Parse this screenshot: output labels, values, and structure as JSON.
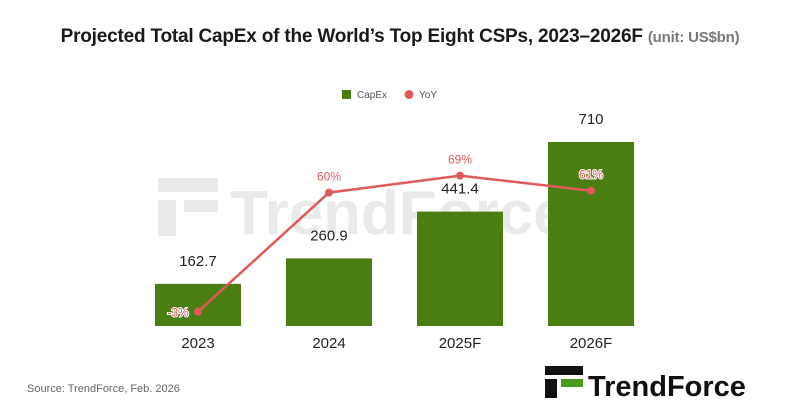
{
  "chart_data": {
    "type": "bar",
    "title": "Projected Total CapEx of the World’s Top Eight CSPs, 2023–2026F",
    "unit": "(unit: US$bn)",
    "categories": [
      "2023",
      "2024",
      "2025F",
      "2026F"
    ],
    "series": [
      {
        "name": "CapEx",
        "type": "bar",
        "values": [
          162.7,
          260.9,
          441.4,
          710
        ],
        "labels": [
          "162.7",
          "260.9",
          "441.4",
          "710"
        ],
        "color": "#4a7d12"
      },
      {
        "name": "YoY",
        "type": "line",
        "values": [
          -3,
          60,
          69,
          61
        ],
        "labels": [
          "-3%",
          "60%",
          "69%",
          "61%"
        ],
        "color": "#e05a5a"
      }
    ],
    "legend": "top-center",
    "grid": false
  },
  "footer": {
    "source": "Source: TrendForce, Feb. 2026",
    "logo_text": "TrendForce",
    "watermark_text": "TrendForce"
  }
}
